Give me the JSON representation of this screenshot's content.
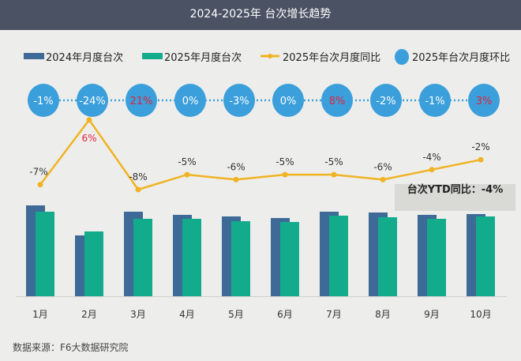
{
  "chart_data": {
    "type": "bar",
    "title": "2024-2025年 台次增长趋势",
    "categories": [
      "1月",
      "2月",
      "3月",
      "4月",
      "5月",
      "6月",
      "7月",
      "8月",
      "9月",
      "10月"
    ],
    "series": [
      {
        "name": "2024年月度台次",
        "type": "bar",
        "color": "#3d6a96",
        "values": [
          115,
          77,
          107,
          103,
          101,
          99,
          107,
          106,
          103,
          104
        ]
      },
      {
        "name": "2025年月度台次",
        "type": "bar",
        "color": "#12ab8c",
        "values": [
          107,
          82,
          98,
          98,
          95,
          94,
          102,
          100,
          98,
          101
        ]
      },
      {
        "name": "2025年台次月度同比",
        "type": "line",
        "color": "#f0b323",
        "values": [
          -7,
          6,
          -8,
          -5,
          -6,
          -5,
          -5,
          -6,
          -4,
          -2
        ],
        "labels": [
          "-7%",
          "6%",
          "-8%",
          "-5%",
          "-6%",
          "-5%",
          "-5%",
          "-6%",
          "-4%",
          "-2%"
        ]
      },
      {
        "name": "2025年台次月度环比",
        "type": "bubble",
        "color": "#3b9fdb",
        "values": [
          -1,
          -24,
          21,
          0,
          -3,
          0,
          8,
          -2,
          -1,
          3
        ],
        "labels": [
          "-1%",
          "-24%",
          "21%",
          "0%",
          "-3%",
          "0%",
          "8%",
          "-2%",
          "-1%",
          "3%"
        ]
      }
    ],
    "bar_values_note_units": "relative (no y-axis shown)",
    "positive_label_color": "#e0233a",
    "legend_position": "top",
    "grid": false,
    "annotation": "台次YTD同比：-4%",
    "source": "数据来源：F6大数据研究院"
  }
}
